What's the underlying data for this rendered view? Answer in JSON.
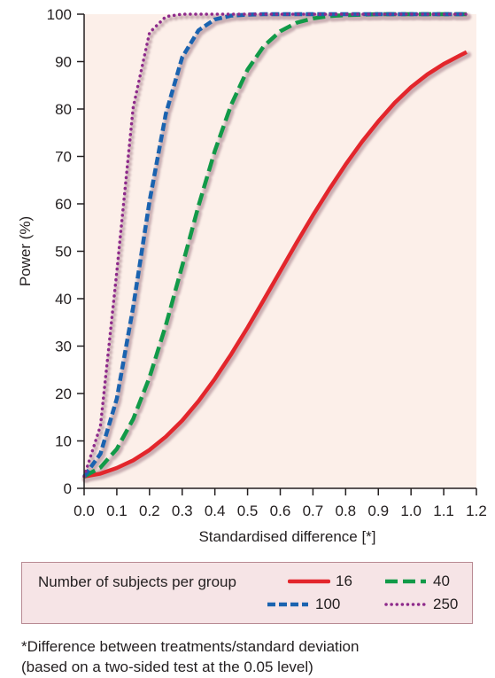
{
  "chart_data": {
    "type": "line",
    "title": "",
    "xlabel": "Standardised difference [*]",
    "ylabel": "Power (%)",
    "xlim": [
      0,
      1.2
    ],
    "ylim": [
      0,
      100
    ],
    "xticks": [
      "0.0",
      "0.1",
      "0.2",
      "0.3",
      "0.4",
      "0.5",
      "0.6",
      "0.7",
      "0.8",
      "0.9",
      "1.0",
      "1.1",
      "1.2"
    ],
    "yticks": [
      "0",
      "10",
      "20",
      "30",
      "40",
      "50",
      "60",
      "70",
      "80",
      "90",
      "100"
    ],
    "background": "#fcefe9",
    "grid": false,
    "legend_title": "Number of subjects per group",
    "legend_position": "bottom",
    "series": [
      {
        "name": "16",
        "color": "#e3262c",
        "style": "solid",
        "x": [
          0,
          0.05,
          0.1,
          0.15,
          0.2,
          0.25,
          0.3,
          0.35,
          0.4,
          0.45,
          0.5,
          0.55,
          0.6,
          0.65,
          0.7,
          0.75,
          0.8,
          0.85,
          0.9,
          0.95,
          1.0,
          1.05,
          1.1,
          1.15,
          1.17
        ],
        "y": [
          2.5,
          3.1,
          4.3,
          5.9,
          8.1,
          10.9,
          14.3,
          18.4,
          23.1,
          28.3,
          33.9,
          39.8,
          45.8,
          51.8,
          57.6,
          63.1,
          68.3,
          73.1,
          77.4,
          81.3,
          84.6,
          87.3,
          89.5,
          91.3,
          92
        ]
      },
      {
        "name": "40",
        "color": "#119a48",
        "style": "dashed",
        "x": [
          0,
          0.05,
          0.1,
          0.15,
          0.2,
          0.25,
          0.3,
          0.35,
          0.4,
          0.45,
          0.5,
          0.55,
          0.6,
          0.65,
          0.7,
          0.75,
          0.8,
          0.85,
          0.9,
          0.95,
          1.0,
          1.05,
          1.1,
          1.15,
          1.17
        ],
        "y": [
          2.5,
          4.4,
          8.3,
          14.6,
          23.4,
          34.4,
          46.9,
          59.6,
          71.2,
          80.9,
          88.3,
          93.3,
          96.4,
          98.2,
          99.1,
          99.6,
          99.8,
          99.9,
          100,
          100,
          100,
          100,
          100,
          100,
          100
        ]
      },
      {
        "name": "100",
        "color": "#1a63b0",
        "style": "dashed",
        "x": [
          0,
          0.05,
          0.1,
          0.15,
          0.2,
          0.25,
          0.3,
          0.35,
          0.4,
          0.45,
          0.5,
          0.55,
          0.6,
          0.65,
          0.7,
          0.8,
          0.9,
          1.0,
          1.1,
          1.17
        ],
        "y": [
          2.5,
          7.3,
          18.9,
          38.2,
          60.5,
          79.0,
          90.9,
          96.6,
          98.9,
          99.7,
          99.9,
          100,
          100,
          100,
          100,
          100,
          100,
          100,
          100,
          100
        ]
      },
      {
        "name": "250",
        "color": "#8e2a8b",
        "style": "dotted",
        "x": [
          0,
          0.05,
          0.1,
          0.15,
          0.2,
          0.25,
          0.3,
          0.35,
          0.4,
          0.45,
          0.5,
          0.6,
          0.7,
          0.8,
          0.9,
          1.0,
          1.1,
          1.17
        ],
        "y": [
          2.5,
          13.2,
          45.7,
          80.3,
          96.1,
          99.5,
          100,
          100,
          100,
          100,
          100,
          100,
          100,
          100,
          100,
          100,
          100,
          100
        ]
      }
    ]
  },
  "legend": {
    "title": "Number of subjects per group",
    "entries": [
      {
        "label": "16",
        "color": "#e3262c",
        "style": "solid"
      },
      {
        "label": "40",
        "color": "#119a48",
        "style": "dashed"
      },
      {
        "label": "100",
        "color": "#1a63b0",
        "style": "dashed"
      },
      {
        "label": "250",
        "color": "#8e2a8b",
        "style": "dotted"
      }
    ],
    "box_color": "#f6e4e6",
    "border_color": "#b88a93"
  },
  "footnote": {
    "line1": "*Difference between treatments/standard deviation",
    "line2": "(based on a two-sided test at the 0.05 level)"
  }
}
